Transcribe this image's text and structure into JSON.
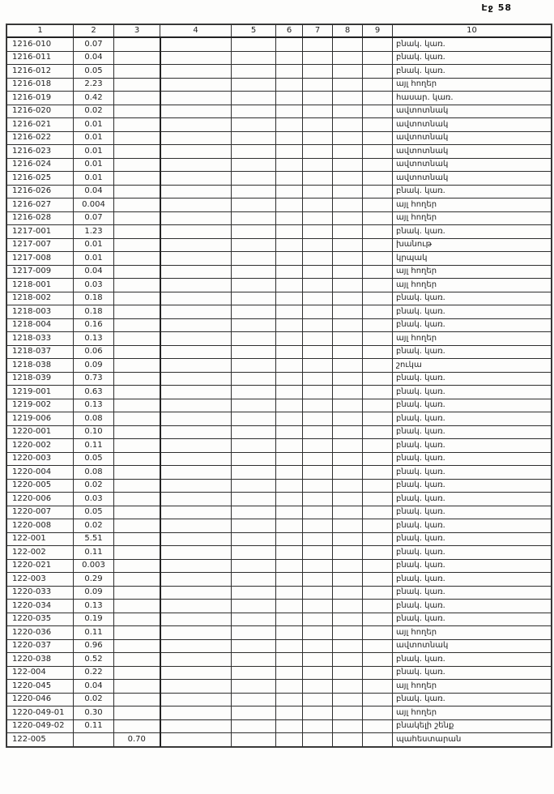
{
  "page": {
    "label": "Էջ 58"
  },
  "table": {
    "headers": [
      "1",
      "2",
      "3",
      "4",
      "5",
      "6",
      "7",
      "8",
      "9",
      "10"
    ],
    "rows": [
      {
        "code": "1216-010",
        "area": "0.07",
        "col3": "",
        "usage": "բնակ. կառ."
      },
      {
        "code": "1216-011",
        "area": "0.04",
        "col3": "",
        "usage": "բնակ. կառ."
      },
      {
        "code": "1216-012",
        "area": "0.05",
        "col3": "",
        "usage": "բնակ. կառ."
      },
      {
        "code": "1216-018",
        "area": "2.23",
        "col3": "",
        "usage": "այլ հողեր"
      },
      {
        "code": "1216-019",
        "area": "0.42",
        "col3": "",
        "usage": "հասար. կառ."
      },
      {
        "code": "1216-020",
        "area": "0.02",
        "col3": "",
        "usage": "ավտոտնակ"
      },
      {
        "code": "1216-021",
        "area": "0.01",
        "col3": "",
        "usage": "ավտոտնակ"
      },
      {
        "code": "1216-022",
        "area": "0.01",
        "col3": "",
        "usage": "ավտոտնակ"
      },
      {
        "code": "1216-023",
        "area": "0.01",
        "col3": "",
        "usage": "ավտոտնակ"
      },
      {
        "code": "1216-024",
        "area": "0.01",
        "col3": "",
        "usage": "ավտոտնակ"
      },
      {
        "code": "1216-025",
        "area": "0.01",
        "col3": "",
        "usage": "ավտոտնակ"
      },
      {
        "code": "1216-026",
        "area": "0.04",
        "col3": "",
        "usage": "բնակ. կառ."
      },
      {
        "code": "1216-027",
        "area": "0.004",
        "col3": "",
        "usage": "այլ հողեր"
      },
      {
        "code": "1216-028",
        "area": "0.07",
        "col3": "",
        "usage": "այլ հողեր"
      },
      {
        "code": "1217-001",
        "area": "1.23",
        "col3": "",
        "usage": "բնակ. կառ."
      },
      {
        "code": "1217-007",
        "area": "0.01",
        "col3": "",
        "usage": "խանութ"
      },
      {
        "code": "1217-008",
        "area": "0.01",
        "col3": "",
        "usage": "կրպակ"
      },
      {
        "code": "1217-009",
        "area": "0.04",
        "col3": "",
        "usage": "այլ հողեր"
      },
      {
        "code": "1218-001",
        "area": "0.03",
        "col3": "",
        "usage": "այլ հողեր"
      },
      {
        "code": "1218-002",
        "area": "0.18",
        "col3": "",
        "usage": "բնակ. կառ."
      },
      {
        "code": "1218-003",
        "area": "0.18",
        "col3": "",
        "usage": "բնակ. կառ."
      },
      {
        "code": "1218-004",
        "area": "0.16",
        "col3": "",
        "usage": "բնակ. կառ."
      },
      {
        "code": "1218-033",
        "area": "0.13",
        "col3": "",
        "usage": "այլ հողեր"
      },
      {
        "code": "1218-037",
        "area": "0.06",
        "col3": "",
        "usage": "բնակ. կառ."
      },
      {
        "code": "1218-038",
        "area": "0.09",
        "col3": "",
        "usage": "շուկա"
      },
      {
        "code": "1218-039",
        "area": "0.73",
        "col3": "",
        "usage": "բնակ. կառ."
      },
      {
        "code": "1219-001",
        "area": "0.63",
        "col3": "",
        "usage": "բնակ. կառ."
      },
      {
        "code": "1219-002",
        "area": "0.13",
        "col3": "",
        "usage": "բնակ. կառ."
      },
      {
        "code": "1219-006",
        "area": "0.08",
        "col3": "",
        "usage": "բնակ. կառ."
      },
      {
        "code": "1220-001",
        "area": "0.10",
        "col3": "",
        "usage": "բնակ. կառ."
      },
      {
        "code": "1220-002",
        "area": "0.11",
        "col3": "",
        "usage": "բնակ. կառ."
      },
      {
        "code": "1220-003",
        "area": "0.05",
        "col3": "",
        "usage": "բնակ. կառ."
      },
      {
        "code": "1220-004",
        "area": "0.08",
        "col3": "",
        "usage": "բնակ. կառ."
      },
      {
        "code": "1220-005",
        "area": "0.02",
        "col3": "",
        "usage": "բնակ. կառ."
      },
      {
        "code": "1220-006",
        "area": "0.03",
        "col3": "",
        "usage": "բնակ. կառ."
      },
      {
        "code": "1220-007",
        "area": "0.05",
        "col3": "",
        "usage": "բնակ. կառ."
      },
      {
        "code": "1220-008",
        "area": "0.02",
        "col3": "",
        "usage": "բնակ. կառ."
      },
      {
        "code": "122-001",
        "area": "5.51",
        "col3": "",
        "usage": "բնակ. կառ."
      },
      {
        "code": "122-002",
        "area": "0.11",
        "col3": "",
        "usage": "բնակ. կառ."
      },
      {
        "code": "1220-021",
        "area": "0.003",
        "col3": "",
        "usage": "բնակ. կառ."
      },
      {
        "code": "122-003",
        "area": "0.29",
        "col3": "",
        "usage": "բնակ. կառ."
      },
      {
        "code": "1220-033",
        "area": "0.09",
        "col3": "",
        "usage": "բնակ. կառ."
      },
      {
        "code": "1220-034",
        "area": "0.13",
        "col3": "",
        "usage": "բնակ. կառ."
      },
      {
        "code": "1220-035",
        "area": "0.19",
        "col3": "",
        "usage": "բնակ. կառ."
      },
      {
        "code": "1220-036",
        "area": "0.11",
        "col3": "",
        "usage": "այլ հողեր"
      },
      {
        "code": "1220-037",
        "area": "0.96",
        "col3": "",
        "usage": "ավտոտնակ"
      },
      {
        "code": "1220-038",
        "area": "0.52",
        "col3": "",
        "usage": "բնակ. կառ."
      },
      {
        "code": "122-004",
        "area": "0.22",
        "col3": "",
        "usage": "բնակ. կառ."
      },
      {
        "code": "1220-045",
        "area": "0.04",
        "col3": "",
        "usage": "այլ հողեր"
      },
      {
        "code": "1220-046",
        "area": "0.02",
        "col3": "",
        "usage": "բնակ. կառ."
      },
      {
        "code": "1220-049-01",
        "area": "0.30",
        "col3": "",
        "usage": "այլ հողեր"
      },
      {
        "code": "1220-049-02",
        "area": "0.11",
        "col3": "",
        "usage": "բնակելի շենք"
      },
      {
        "code": "122-005",
        "area": "",
        "col3": "0.70",
        "usage": "պահեստարան"
      }
    ]
  }
}
